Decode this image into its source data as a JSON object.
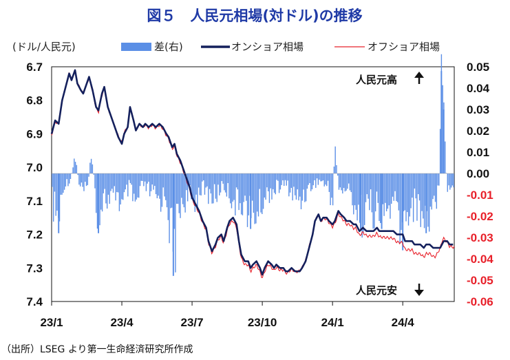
{
  "chart_data": {
    "type": "line",
    "title": "図５　人民元相場(対ドル)の推移",
    "ylabel_left": "(ドル/人民元)",
    "legend": [
      {
        "name": "差(右)",
        "kind": "bar",
        "color": "#5b8fe6"
      },
      {
        "name": "オンショア相場",
        "kind": "line",
        "color": "#14205c"
      },
      {
        "name": "オフショア相場",
        "kind": "line",
        "color": "#e8202a"
      }
    ],
    "y_left": {
      "min": 6.7,
      "max": 7.4,
      "inverted": true,
      "ticks": [
        "6.7",
        "6.8",
        "6.9",
        "7.0",
        "7.1",
        "7.2",
        "7.3",
        "7.4"
      ]
    },
    "y_right": {
      "min": -0.06,
      "max": 0.05,
      "ticks": [
        {
          "label": "0.05",
          "color": "#111111"
        },
        {
          "label": "0.04",
          "color": "#111111"
        },
        {
          "label": "0.03",
          "color": "#111111"
        },
        {
          "label": "0.02",
          "color": "#111111"
        },
        {
          "label": "0.01",
          "color": "#111111"
        },
        {
          "label": "0.00",
          "color": "#111111"
        },
        {
          "label": "-0.01",
          "color": "#e8202a"
        },
        {
          "label": "-0.02",
          "color": "#e8202a"
        },
        {
          "label": "-0.03",
          "color": "#e8202a"
        },
        {
          "label": "-0.04",
          "color": "#e8202a"
        },
        {
          "label": "-0.05",
          "color": "#e8202a"
        },
        {
          "label": "-0.06",
          "color": "#e8202a"
        }
      ]
    },
    "x_ticks": [
      "23/1",
      "23/4",
      "23/7",
      "23/10",
      "24/1",
      "24/4"
    ],
    "x_range_months": [
      0,
      17.2
    ],
    "onshore_points": [
      [
        0.0,
        6.9
      ],
      [
        0.15,
        6.86
      ],
      [
        0.3,
        6.87
      ],
      [
        0.45,
        6.8
      ],
      [
        0.6,
        6.76
      ],
      [
        0.75,
        6.72
      ],
      [
        0.85,
        6.74
      ],
      [
        1.0,
        6.71
      ],
      [
        1.1,
        6.75
      ],
      [
        1.25,
        6.77
      ],
      [
        1.35,
        6.78
      ],
      [
        1.5,
        6.75
      ],
      [
        1.6,
        6.73
      ],
      [
        1.75,
        6.77
      ],
      [
        1.9,
        6.82
      ],
      [
        2.0,
        6.83
      ],
      [
        2.15,
        6.78
      ],
      [
        2.25,
        6.76
      ],
      [
        2.4,
        6.82
      ],
      [
        2.55,
        6.85
      ],
      [
        2.7,
        6.88
      ],
      [
        2.85,
        6.91
      ],
      [
        3.0,
        6.93
      ],
      [
        3.1,
        6.9
      ],
      [
        3.25,
        6.88
      ],
      [
        3.35,
        6.82
      ],
      [
        3.5,
        6.86
      ],
      [
        3.6,
        6.89
      ],
      [
        3.75,
        6.87
      ],
      [
        3.9,
        6.88
      ],
      [
        4.0,
        6.87
      ],
      [
        4.15,
        6.88
      ],
      [
        4.3,
        6.87
      ],
      [
        4.45,
        6.88
      ],
      [
        4.6,
        6.87
      ],
      [
        4.75,
        6.88
      ],
      [
        4.9,
        6.9
      ],
      [
        5.0,
        6.91
      ],
      [
        5.15,
        6.94
      ],
      [
        5.25,
        6.93
      ],
      [
        5.35,
        6.96
      ],
      [
        5.5,
        6.98
      ],
      [
        5.6,
        7.0
      ],
      [
        5.75,
        7.03
      ],
      [
        5.9,
        7.06
      ],
      [
        6.0,
        7.09
      ],
      [
        6.15,
        7.11
      ],
      [
        6.3,
        7.13
      ],
      [
        6.45,
        7.16
      ],
      [
        6.6,
        7.18
      ],
      [
        6.7,
        7.22
      ],
      [
        6.85,
        7.25
      ],
      [
        7.0,
        7.23
      ],
      [
        7.1,
        7.21
      ],
      [
        7.25,
        7.2
      ],
      [
        7.35,
        7.22
      ],
      [
        7.5,
        7.18
      ],
      [
        7.6,
        7.16
      ],
      [
        7.75,
        7.15
      ],
      [
        7.9,
        7.17
      ],
      [
        8.0,
        7.22
      ],
      [
        8.1,
        7.26
      ],
      [
        8.25,
        7.28
      ],
      [
        8.4,
        7.28
      ],
      [
        8.5,
        7.3
      ],
      [
        8.6,
        7.29
      ],
      [
        8.75,
        7.28
      ],
      [
        8.9,
        7.3
      ],
      [
        9.0,
        7.32
      ],
      [
        9.1,
        7.3
      ],
      [
        9.25,
        7.28
      ],
      [
        9.4,
        7.29
      ],
      [
        9.5,
        7.3
      ],
      [
        9.6,
        7.29
      ],
      [
        9.75,
        7.3
      ],
      [
        9.9,
        7.3
      ],
      [
        10.0,
        7.31
      ],
      [
        10.1,
        7.31
      ],
      [
        10.25,
        7.3
      ],
      [
        10.4,
        7.31
      ],
      [
        10.5,
        7.31
      ],
      [
        10.6,
        7.31
      ],
      [
        10.7,
        7.3
      ],
      [
        10.85,
        7.28
      ],
      [
        11.0,
        7.24
      ],
      [
        11.15,
        7.2
      ],
      [
        11.25,
        7.16
      ],
      [
        11.4,
        7.14
      ],
      [
        11.5,
        7.16
      ],
      [
        11.6,
        7.15
      ],
      [
        11.75,
        7.15
      ],
      [
        11.85,
        7.16
      ],
      [
        12.0,
        7.17
      ],
      [
        12.1,
        7.16
      ],
      [
        12.25,
        7.13
      ],
      [
        12.35,
        7.14
      ],
      [
        12.5,
        7.15
      ],
      [
        12.6,
        7.16
      ],
      [
        12.75,
        7.16
      ],
      [
        12.9,
        7.17
      ],
      [
        13.0,
        7.17
      ],
      [
        13.15,
        7.19
      ],
      [
        13.3,
        7.18
      ],
      [
        13.45,
        7.19
      ],
      [
        13.6,
        7.19
      ],
      [
        13.75,
        7.19
      ],
      [
        13.9,
        7.18
      ],
      [
        14.0,
        7.19
      ],
      [
        14.15,
        7.19
      ],
      [
        14.3,
        7.19
      ],
      [
        14.45,
        7.19
      ],
      [
        14.6,
        7.19
      ],
      [
        14.75,
        7.2
      ],
      [
        14.9,
        7.2
      ],
      [
        15.0,
        7.2
      ],
      [
        15.1,
        7.22
      ],
      [
        15.25,
        7.22
      ],
      [
        15.4,
        7.22
      ],
      [
        15.5,
        7.23
      ],
      [
        15.6,
        7.23
      ],
      [
        15.75,
        7.23
      ],
      [
        15.9,
        7.24
      ],
      [
        16.0,
        7.23
      ],
      [
        16.15,
        7.23
      ],
      [
        16.3,
        7.24
      ],
      [
        16.45,
        7.24
      ],
      [
        16.6,
        7.24
      ],
      [
        16.75,
        7.22
      ],
      [
        16.9,
        7.22
      ],
      [
        17.0,
        7.23
      ],
      [
        17.15,
        7.23
      ]
    ],
    "offshore_offset_points": [
      [
        0.0,
        0.004
      ],
      [
        1.0,
        -0.003
      ],
      [
        2.0,
        0.006
      ],
      [
        3.0,
        -0.004
      ],
      [
        4.0,
        0.002
      ],
      [
        5.0,
        0.005
      ],
      [
        6.0,
        0.006
      ],
      [
        7.0,
        0.006
      ],
      [
        8.0,
        0.01
      ],
      [
        9.0,
        0.011
      ],
      [
        10.0,
        0.005
      ],
      [
        11.0,
        -0.004
      ],
      [
        12.0,
        0.007
      ],
      [
        13.0,
        0.012
      ],
      [
        14.0,
        0.017
      ],
      [
        15.0,
        0.025
      ],
      [
        15.8,
        0.028
      ],
      [
        16.4,
        0.026
      ],
      [
        16.7,
        -0.012
      ],
      [
        16.9,
        0.004
      ],
      [
        17.15,
        0.008
      ]
    ],
    "spread_bars": [
      [
        0.05,
        -0.018
      ],
      [
        0.3,
        -0.028
      ],
      [
        0.55,
        -0.006
      ],
      [
        0.8,
        -0.004
      ],
      [
        1.0,
        0.01
      ],
      [
        1.2,
        -0.008
      ],
      [
        1.5,
        -0.012
      ],
      [
        1.7,
        0.012
      ],
      [
        2.0,
        -0.028
      ],
      [
        2.2,
        -0.012
      ],
      [
        2.5,
        -0.018
      ],
      [
        2.8,
        -0.01
      ],
      [
        3.0,
        -0.022
      ],
      [
        3.3,
        -0.008
      ],
      [
        3.6,
        -0.02
      ],
      [
        3.9,
        -0.006
      ],
      [
        4.0,
        -0.008
      ],
      [
        4.3,
        -0.012
      ],
      [
        4.6,
        -0.016
      ],
      [
        4.9,
        -0.012
      ],
      [
        5.2,
        -0.048
      ],
      [
        5.5,
        -0.018
      ],
      [
        5.8,
        -0.014
      ],
      [
        6.1,
        -0.016
      ],
      [
        6.4,
        -0.008
      ],
      [
        6.7,
        -0.012
      ],
      [
        7.0,
        -0.014
      ],
      [
        7.3,
        -0.006
      ],
      [
        7.6,
        -0.012
      ],
      [
        7.9,
        -0.018
      ],
      [
        8.2,
        -0.016
      ],
      [
        8.5,
        -0.026
      ],
      [
        8.8,
        -0.022
      ],
      [
        9.1,
        -0.014
      ],
      [
        9.4,
        -0.01
      ],
      [
        9.7,
        -0.008
      ],
      [
        10.0,
        -0.006
      ],
      [
        10.3,
        -0.012
      ],
      [
        10.6,
        -0.016
      ],
      [
        10.9,
        -0.01
      ],
      [
        11.2,
        -0.006
      ],
      [
        11.5,
        -0.004
      ],
      [
        11.8,
        -0.008
      ],
      [
        12.0,
        -0.018
      ],
      [
        12.1,
        0.015
      ],
      [
        12.3,
        -0.012
      ],
      [
        12.6,
        -0.008
      ],
      [
        12.9,
        -0.016
      ],
      [
        13.2,
        -0.026
      ],
      [
        13.5,
        -0.018
      ],
      [
        13.8,
        -0.022
      ],
      [
        14.1,
        -0.026
      ],
      [
        14.4,
        -0.02
      ],
      [
        14.7,
        -0.018
      ],
      [
        15.0,
        -0.036
      ],
      [
        15.1,
        -0.024
      ],
      [
        15.4,
        -0.018
      ],
      [
        15.7,
        -0.02
      ],
      [
        16.0,
        -0.028
      ],
      [
        16.3,
        -0.016
      ],
      [
        16.55,
        -0.012
      ],
      [
        16.65,
        0.048
      ],
      [
        16.75,
        0.03
      ],
      [
        16.9,
        -0.01
      ],
      [
        17.1,
        -0.006
      ]
    ],
    "annotations": [
      {
        "text": "人民元高",
        "arrow": "up"
      },
      {
        "text": "人民元安",
        "arrow": "down"
      }
    ]
  },
  "source": "（出所）LSEG より第一生命経済研究所作成"
}
